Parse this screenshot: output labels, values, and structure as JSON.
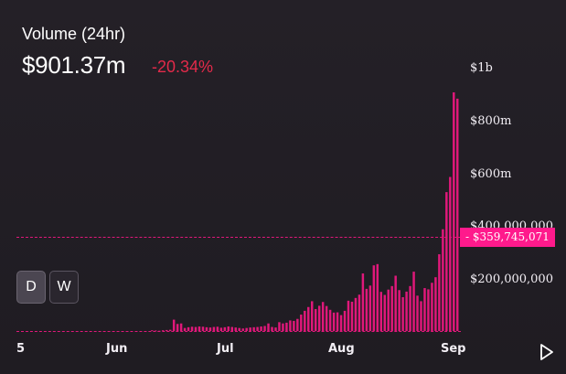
{
  "header": {
    "title": "Volume (24hr)",
    "value": "$901.37m",
    "change": "-20.34%"
  },
  "y_axis": {
    "labels": [
      "$1b",
      "$800m",
      "$600m",
      "$400,000,000",
      "$200,000,000"
    ]
  },
  "x_axis": {
    "labels": [
      "5",
      "Jun",
      "Jul",
      "Aug",
      "Sep"
    ]
  },
  "price_tag": "- $359,745,071",
  "buttons": {
    "daily": "D",
    "weekly": "W"
  },
  "colors": {
    "bar": "#e0187a",
    "accent": "#ff1a8c",
    "negative": "#e32a4a"
  },
  "icons": {
    "play": "play-icon"
  },
  "chart_data": {
    "type": "bar",
    "title": "Volume (24hr)",
    "ylim": [
      0,
      1050000000
    ],
    "current_marker": 359745071,
    "x_tick_labels": [
      "5",
      "Jun",
      "Jul",
      "Aug",
      "Sep"
    ],
    "values": [
      0,
      0,
      0,
      0,
      0,
      0,
      0,
      0,
      0,
      0,
      0,
      0,
      0,
      0,
      0,
      0,
      0,
      0,
      0,
      0,
      0,
      0,
      0,
      0,
      0,
      0,
      0,
      0,
      0,
      0,
      0,
      0,
      0,
      0,
      0,
      0,
      0,
      3000000,
      2000000,
      1000000,
      3000000,
      4000000,
      5000000,
      45000000,
      28000000,
      30000000,
      12000000,
      15000000,
      17000000,
      16000000,
      18000000,
      17000000,
      15000000,
      14000000,
      16000000,
      17000000,
      13000000,
      15000000,
      18000000,
      16000000,
      14000000,
      12000000,
      10000000,
      12000000,
      14000000,
      15000000,
      16000000,
      18000000,
      20000000,
      30000000,
      16000000,
      14000000,
      35000000,
      30000000,
      33000000,
      42000000,
      40000000,
      48000000,
      65000000,
      80000000,
      95000000,
      118000000,
      87000000,
      100000000,
      115000000,
      99000000,
      84000000,
      73000000,
      74000000,
      63000000,
      80000000,
      120000000,
      116000000,
      131000000,
      144000000,
      228000000,
      167000000,
      180000000,
      260000000,
      265000000,
      155000000,
      143000000,
      164000000,
      178000000,
      219000000,
      162000000,
      134000000,
      156000000,
      178000000,
      235000000,
      140000000,
      118000000,
      170000000,
      165000000,
      191000000,
      213000000,
      304000000,
      403000000,
      550000000,
      610000000,
      945000000,
      920000000
    ]
  }
}
